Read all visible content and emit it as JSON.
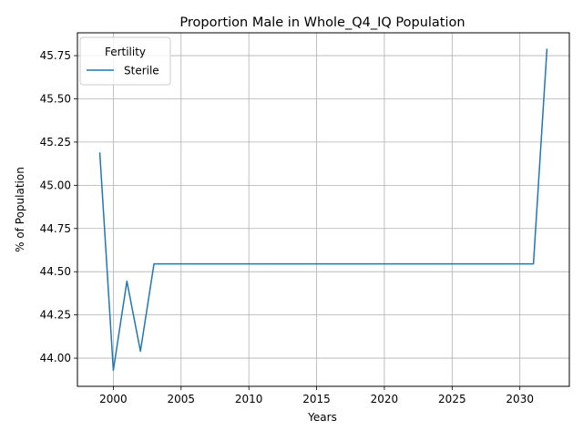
{
  "chart_data": {
    "type": "line",
    "title": "Proportion Male in Whole_Q4_IQ Population",
    "xlabel": "Years",
    "ylabel": "% of Population",
    "xlim": [
      1997.35,
      2033.65
    ],
    "ylim": [
      43.837,
      45.882
    ],
    "xticks": [
      2000,
      2005,
      2010,
      2015,
      2020,
      2025,
      2030
    ],
    "xtick_labels": [
      "2000",
      "2005",
      "2010",
      "2015",
      "2020",
      "2025",
      "2030"
    ],
    "yticks": [
      44.0,
      44.25,
      44.5,
      44.75,
      45.0,
      45.25,
      45.5,
      45.75
    ],
    "ytick_labels": [
      "44.00",
      "44.25",
      "44.50",
      "44.75",
      "45.00",
      "45.25",
      "45.50",
      "45.75"
    ],
    "grid": true,
    "legend": {
      "title": "Fertility",
      "placement": "top-left"
    },
    "series": [
      {
        "name": "Sterile",
        "color": "#1f77b4",
        "x": [
          1999,
          2000,
          2001,
          2002,
          2003,
          2004,
          2005,
          2006,
          2007,
          2008,
          2009,
          2010,
          2011,
          2012,
          2013,
          2014,
          2015,
          2016,
          2017,
          2018,
          2019,
          2020,
          2021,
          2022,
          2023,
          2024,
          2025,
          2026,
          2027,
          2028,
          2029,
          2030,
          2031,
          2032
        ],
        "y": [
          45.19,
          43.93,
          44.445,
          44.04,
          44.545,
          44.545,
          44.545,
          44.545,
          44.545,
          44.545,
          44.545,
          44.545,
          44.545,
          44.545,
          44.545,
          44.545,
          44.545,
          44.545,
          44.545,
          44.545,
          44.545,
          44.545,
          44.545,
          44.545,
          44.545,
          44.545,
          44.545,
          44.545,
          44.545,
          44.545,
          44.545,
          44.545,
          44.545,
          45.79
        ]
      }
    ]
  }
}
